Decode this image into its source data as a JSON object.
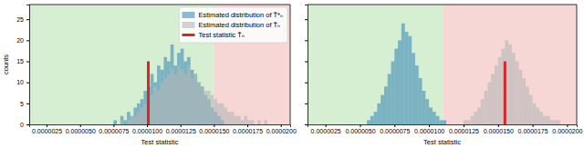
{
  "chart_data": [
    {
      "type": "histogram",
      "x_label": "Test statistic",
      "y_label": "counts",
      "xlim": [
        1.2e-06,
        2.07e-05
      ],
      "ylim": [
        0,
        28.5
      ],
      "xticks": [
        {
          "value": 2.5e-06,
          "label": "0.0000025"
        },
        {
          "value": 5e-06,
          "label": "0.0000050"
        },
        {
          "value": 7.5e-06,
          "label": "0.0000075"
        },
        {
          "value": 1e-05,
          "label": "0.0000100"
        },
        {
          "value": 1.25e-05,
          "label": "0.0000125"
        },
        {
          "value": 1.5e-05,
          "label": "0.0000150"
        },
        {
          "value": 1.75e-05,
          "label": "0.0000175"
        },
        {
          "value": 2e-05,
          "label": "0.0000200"
        }
      ],
      "yticks": [
        0,
        5,
        10,
        15,
        20,
        25
      ],
      "legend": "upper right",
      "threshold": 1.5e-05,
      "bins": [
        5e-06,
        5.25e-06,
        5.5e-06,
        5.75e-06,
        6e-06,
        6.25e-06,
        6.5e-06,
        6.75e-06,
        7e-06,
        7.25e-06,
        7.5e-06,
        7.75e-06,
        8e-06,
        8.25e-06,
        8.5e-06,
        8.75e-06,
        9e-06,
        9.25e-06,
        9.5e-06,
        9.75e-06,
        1e-05,
        1.025e-05,
        1.05e-05,
        1.075e-05,
        1.1e-05,
        1.125e-05,
        1.15e-05,
        1.175e-05,
        1.2e-05,
        1.225e-05,
        1.25e-05,
        1.275e-05,
        1.3e-05,
        1.325e-05,
        1.35e-05,
        1.375e-05,
        1.4e-05,
        1.425e-05,
        1.45e-05,
        1.475e-05,
        1.5e-05,
        1.525e-05,
        1.55e-05,
        1.575e-05,
        1.6e-05,
        1.625e-05,
        1.65e-05,
        1.675e-05,
        1.7e-05,
        1.725e-05,
        1.75e-05,
        1.775e-05,
        1.8e-05,
        1.825e-05,
        1.85e-05,
        1.875e-05,
        1.9e-05,
        1.925e-05,
        1.95e-05
      ],
      "series": [
        {
          "name": "Estimated distribution of T̃*ₙ",
          "color": "#1f77b4",
          "values": [
            0,
            0,
            0,
            0,
            0,
            0,
            0,
            0,
            0,
            0,
            1,
            0,
            2,
            1,
            3,
            2,
            4,
            5,
            6,
            8,
            9,
            12,
            10,
            14,
            13,
            16,
            15,
            19,
            14,
            17,
            18,
            15,
            16,
            13,
            12,
            10,
            9,
            7,
            6,
            4,
            3,
            2,
            1,
            0,
            0,
            0,
            0,
            0,
            0,
            0,
            0,
            0,
            0,
            0,
            0,
            0,
            0,
            0
          ]
        },
        {
          "name": "Estimated distribution of T̃ₙ",
          "color": "#b5b5b5",
          "values": [
            0,
            0,
            0,
            0,
            0,
            0,
            0,
            0,
            0,
            0,
            0,
            0,
            1,
            0,
            1,
            2,
            2,
            3,
            4,
            5,
            6,
            7,
            9,
            8,
            10,
            11,
            12,
            13,
            12,
            14,
            13,
            12,
            14,
            11,
            12,
            10,
            9,
            8,
            8,
            7,
            6,
            5,
            5,
            4,
            3,
            3,
            2,
            2,
            1,
            2,
            1,
            1,
            0,
            1,
            0,
            1,
            0,
            0
          ]
        }
      ],
      "test_statistic": {
        "name": "Test statistic T̃ₙ",
        "color": "#d62728",
        "x": 1.01e-05,
        "y": 15
      }
    },
    {
      "type": "histogram",
      "x_label": "Test statistic",
      "xlim": [
        1.2e-06,
        2.07e-05
      ],
      "ylim": [
        0,
        28.5
      ],
      "xticks": [
        {
          "value": 2.5e-06,
          "label": "0.0000025"
        },
        {
          "value": 5e-06,
          "label": "0.0000050"
        },
        {
          "value": 7.5e-06,
          "label": "0.0000075"
        },
        {
          "value": 1e-05,
          "label": "0.0000100"
        },
        {
          "value": 1.25e-05,
          "label": "0.0000125"
        },
        {
          "value": 1.5e-05,
          "label": "0.0000150"
        },
        {
          "value": 1.75e-05,
          "label": "0.0000175"
        },
        {
          "value": 2e-05,
          "label": "0.0000200"
        }
      ],
      "yticks": [
        0,
        5,
        10,
        15,
        20,
        25
      ],
      "tick_labels": "x",
      "threshold": 1.1e-05,
      "bins": [
        5e-06,
        5.25e-06,
        5.5e-06,
        5.75e-06,
        6e-06,
        6.25e-06,
        6.5e-06,
        6.75e-06,
        7e-06,
        7.25e-06,
        7.5e-06,
        7.75e-06,
        8e-06,
        8.25e-06,
        8.5e-06,
        8.75e-06,
        9e-06,
        9.25e-06,
        9.5e-06,
        9.75e-06,
        1e-05,
        1.025e-05,
        1.05e-05,
        1.075e-05,
        1.1e-05,
        1.125e-05,
        1.15e-05,
        1.175e-05,
        1.2e-05,
        1.225e-05,
        1.25e-05,
        1.275e-05,
        1.3e-05,
        1.325e-05,
        1.35e-05,
        1.375e-05,
        1.4e-05,
        1.425e-05,
        1.45e-05,
        1.475e-05,
        1.5e-05,
        1.525e-05,
        1.55e-05,
        1.575e-05,
        1.6e-05,
        1.625e-05,
        1.65e-05,
        1.675e-05,
        1.7e-05,
        1.725e-05,
        1.75e-05,
        1.775e-05,
        1.8e-05,
        1.825e-05,
        1.85e-05,
        1.875e-05,
        1.9e-05,
        1.925e-05,
        1.95e-05
      ],
      "series": [
        {
          "color": "#1f77b4",
          "values": [
            0,
            0,
            1,
            2,
            3,
            5,
            7,
            9,
            12,
            15,
            18,
            20,
            24,
            22,
            21,
            17,
            14,
            11,
            8,
            6,
            4,
            3,
            2,
            1,
            1,
            0,
            0,
            0,
            0,
            0,
            0,
            0,
            0,
            0,
            0,
            0,
            0,
            0,
            0,
            0,
            0,
            0,
            0,
            0,
            0,
            0,
            0,
            0,
            0,
            0,
            0,
            0,
            0,
            0,
            0,
            0,
            0,
            0
          ]
        },
        {
          "color": "#b5b5b5",
          "values": [
            0,
            0,
            0,
            0,
            0,
            0,
            0,
            0,
            0,
            0,
            0,
            0,
            0,
            0,
            0,
            0,
            0,
            0,
            0,
            0,
            0,
            0,
            0,
            0,
            0,
            0,
            0,
            0,
            0,
            0,
            1,
            1,
            2,
            3,
            4,
            6,
            8,
            10,
            12,
            14,
            16,
            18,
            20,
            19,
            17,
            15,
            13,
            11,
            9,
            7,
            5,
            4,
            3,
            2,
            2,
            1,
            1,
            1
          ]
        }
      ],
      "test_statistic": {
        "color": "#d62728",
        "x": 1.55e-05,
        "y": 15
      }
    }
  ]
}
